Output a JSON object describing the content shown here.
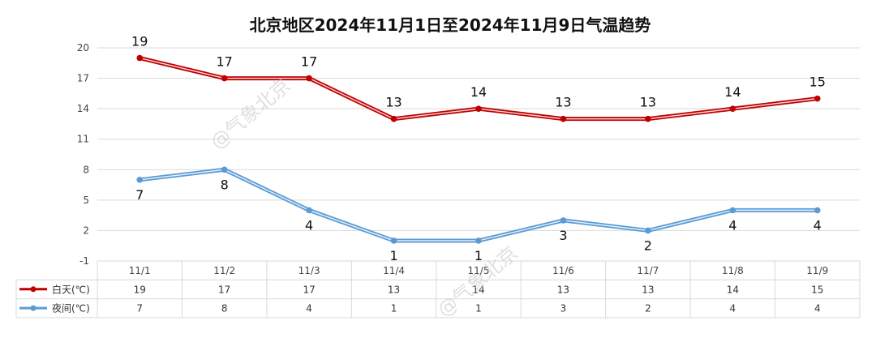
{
  "chart_data": {
    "type": "line",
    "title": "北京地区2024年11月1日至2024年11月9日气温趋势",
    "categories": [
      "11/1",
      "11/2",
      "11/3",
      "11/4",
      "11/5",
      "11/6",
      "11/7",
      "11/8",
      "11/9"
    ],
    "yticks": [
      "-1",
      "2",
      "5",
      "8",
      "11",
      "14",
      "17",
      "20"
    ],
    "ylim": [
      -1,
      20
    ],
    "grid": true,
    "legend": "data-table",
    "series": [
      {
        "name": "白天(℃)",
        "color": "#c00000",
        "values": [
          19,
          17,
          17,
          13,
          14,
          13,
          13,
          14,
          15
        ]
      },
      {
        "name": "夜间(℃)",
        "color": "#5b9bd5",
        "values": [
          7,
          8,
          4,
          1,
          1,
          3,
          2,
          4,
          4
        ]
      }
    ]
  },
  "watermark": "@气象北京"
}
